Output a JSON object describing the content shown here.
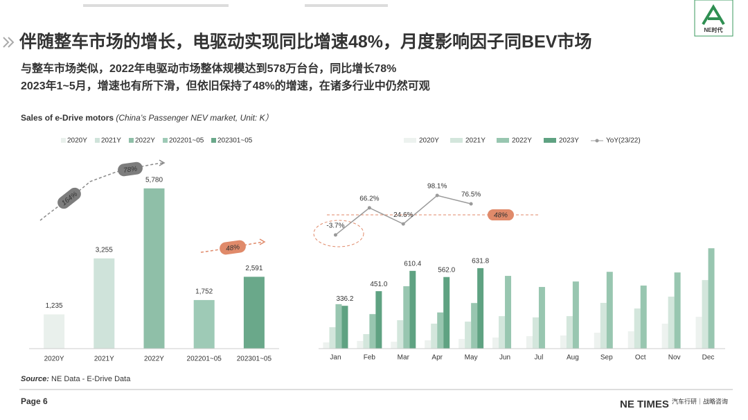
{
  "title": "伴随整车市场的增长，电驱动实现同比增速48%，月度影响因子同BEV市场",
  "subtitle": [
    "与整车市场类似，2022年电驱动市场整体规模达到578万台台，同比增长78%",
    "2023年1~5月，增速也有所下滑，但依旧保持了48%的增速，在诸多行业中仍然可观"
  ],
  "logo_text": "NE时代",
  "source_label": "Source:",
  "source": "NE Data - E-Drive Data",
  "page": "Page 6",
  "brand": "NE TIMES",
  "brand_tagline": "汽车行研｜战略咨询",
  "chart_data": [
    {
      "type": "bar",
      "title": "Sales of e-Drive motors",
      "subtitle": "(China’s Passenger NEV market, Unit: K）",
      "categories": [
        "2020Y",
        "2021Y",
        "2022Y",
        "202201~05",
        "202301~05"
      ],
      "values": [
        1235,
        3255,
        5780,
        1752,
        2591
      ],
      "value_labels": [
        "1,235",
        "3,255",
        "5,780",
        "1,752",
        "2,591"
      ],
      "colors": [
        "#e9f0ec",
        "#cfe3da",
        "#8fbfa8",
        "#9ecab6",
        "#6aa88a"
      ],
      "ylim": [
        0,
        7075
      ],
      "annotations": [
        "164%",
        "78%",
        "48%"
      ]
    },
    {
      "type": "grouped_bar",
      "categories": [
        "Jan",
        "Feb",
        "Mar",
        "Apr",
        "May",
        "Jun",
        "Jul",
        "Aug",
        "Sep",
        "Oct",
        "Nov",
        "Dec"
      ],
      "series": [
        {
          "name": "2020Y",
          "color": "#edf2ef",
          "values": [
            49,
            60,
            54,
            65,
            76,
            87,
            98,
            103,
            125,
            136,
            196,
            250
          ]
        },
        {
          "name": "2021Y",
          "color": "#d3e6dc",
          "values": [
            168,
            114,
            223,
            196,
            212,
            255,
            245,
            255,
            359,
            315,
            408,
            538
          ]
        },
        {
          "name": "2022Y",
          "color": "#98c6b0",
          "values": [
            349,
            271,
            490,
            284,
            358,
            571,
            484,
            527,
            603,
            495,
            598,
            788
          ]
        },
        {
          "name": "2023Y",
          "color": "#5fa282",
          "values": [
            336.2,
            451.0,
            610.4,
            562.0,
            631.8,
            null,
            null,
            null,
            null,
            null,
            null,
            null
          ],
          "value_labels": [
            "336.2",
            "451.0",
            "610.4",
            "562.0",
            "631.8",
            null,
            null,
            null,
            null,
            null,
            null,
            null
          ]
        },
        {
          "name": "YoY(23/22)",
          "type": "line",
          "axis": "y2",
          "color": "#9a9a9a",
          "values": [
            -3.7,
            66.2,
            24.6,
            98.1,
            76.5,
            null,
            null,
            null,
            null,
            null,
            null,
            null
          ],
          "value_labels": [
            "-3.7%",
            "66.2%",
            "24.6%",
            "98.1%",
            "76.5%",
            null,
            null,
            null,
            null,
            null,
            null,
            null
          ]
        }
      ],
      "ylim": [
        0,
        1540
      ],
      "y2lim": [
        -297,
        209
      ],
      "reference": {
        "value": 48,
        "label": "48%"
      }
    }
  ]
}
